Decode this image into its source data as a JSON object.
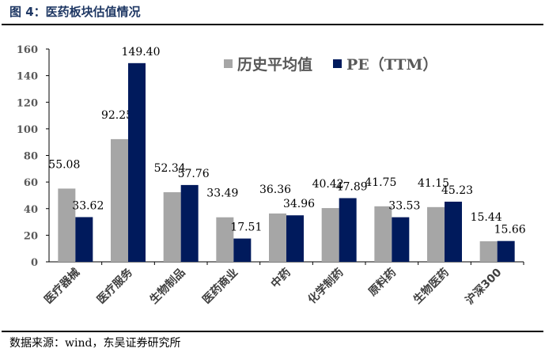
{
  "header": {
    "title": "图 4：医药板块估值情况"
  },
  "footer": {
    "source": "数据来源：wind，东吴证券研究所"
  },
  "chart_data": {
    "type": "bar",
    "title": "",
    "xlabel": "",
    "ylabel": "",
    "ylim": [
      0,
      160
    ],
    "yticks": [
      0,
      20,
      40,
      60,
      80,
      100,
      120,
      140,
      160
    ],
    "grid": false,
    "legend_position": "top-right",
    "categories": [
      "医疗器械",
      "医疗服务",
      "生物制品",
      "医药商业",
      "中药",
      "化学制药",
      "原料药",
      "生物医药",
      "沪深300"
    ],
    "series": [
      {
        "name": "历史平均值",
        "color": "#a6a6a6",
        "values": [
          55.08,
          92.25,
          52.34,
          33.49,
          36.36,
          40.42,
          41.75,
          41.15,
          15.44
        ]
      },
      {
        "name": "PE（TTM）",
        "color": "#001a5c",
        "values": [
          33.62,
          149.4,
          57.76,
          17.51,
          34.96,
          47.89,
          33.53,
          45.23,
          15.66
        ]
      }
    ]
  }
}
